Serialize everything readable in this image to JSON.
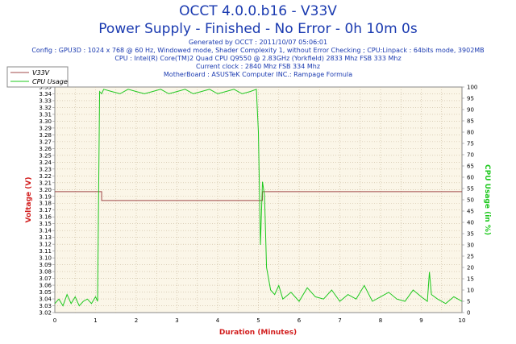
{
  "chart_data": {
    "type": "line",
    "title": "OCCT 4.0.0.b16 - V33V",
    "subtitle": "Power Supply - Finished - No Error - 0h 10m 0s",
    "info": [
      "Generated by OCCT : 2011/10/07 05:06:01",
      "Config : GPU3D : 1024 x 768 @ 60 Hz, Windowed mode, Shader Complexity 1, without Error Checking ; CPU:Linpack : 64bits mode, 3902MB",
      "CPU : Intel(R) Core(TM)2 Quad CPU Q9550 @ 2.83GHz (Yorkfield) 2833 Mhz FSB 333 Mhz",
      "Current clock : 2840 Mhz FSB 334 Mhz",
      "MotherBoard : ASUSTeK Computer INC.: Rampage Formula"
    ],
    "xlabel": "Duration (Minutes)",
    "ylabel": "Voltage (V)",
    "y2label": "CPU Usage (in %)",
    "xlim": [
      0,
      10
    ],
    "ylim": [
      3.02,
      3.35
    ],
    "y2lim": [
      0,
      100
    ],
    "x_ticks": [
      0,
      1,
      2,
      3,
      4,
      5,
      6,
      7,
      8,
      9,
      10
    ],
    "y_ticks": [
      "3.02",
      "3.03",
      "3.04",
      "3.05",
      "3.06",
      "3.07",
      "3.08",
      "3.09",
      "3.10",
      "3.11",
      "3.12",
      "3.13",
      "3.14",
      "3.15",
      "3.16",
      "3.17",
      "3.18",
      "3.19",
      "3.20",
      "3.21",
      "3.22",
      "3.23",
      "3.24",
      "3.25",
      "3.26",
      "3.27",
      "3.28",
      "3.29",
      "3.30",
      "3.31",
      "3.32",
      "3.33",
      "3.34",
      "3.35"
    ],
    "y2_ticks": [
      0,
      5,
      10,
      15,
      20,
      25,
      30,
      35,
      40,
      45,
      50,
      55,
      60,
      65,
      70,
      75,
      80,
      85,
      90,
      95,
      100
    ],
    "grid": true,
    "legend_position": "top-left",
    "series": [
      {
        "name": "V33V",
        "axis": "left",
        "color": "#a04848",
        "x": [
          0,
          1.1,
          1.15,
          5.0,
          5.1,
          10
        ],
        "y": [
          3.197,
          3.197,
          3.184,
          3.184,
          3.197,
          3.197
        ]
      },
      {
        "name": "CPU Usage",
        "axis": "right",
        "color": "#1ec81e",
        "x": [
          0,
          0.1,
          0.2,
          0.3,
          0.4,
          0.5,
          0.6,
          0.7,
          0.8,
          0.9,
          1.0,
          1.05,
          1.1,
          1.15,
          1.2,
          1.4,
          1.6,
          1.8,
          2.0,
          2.2,
          2.4,
          2.6,
          2.8,
          3.0,
          3.2,
          3.4,
          3.6,
          3.8,
          4.0,
          4.2,
          4.4,
          4.6,
          4.8,
          4.95,
          5.0,
          5.05,
          5.1,
          5.15,
          5.2,
          5.3,
          5.4,
          5.5,
          5.6,
          5.8,
          6.0,
          6.2,
          6.4,
          6.6,
          6.8,
          7.0,
          7.2,
          7.4,
          7.6,
          7.8,
          8.0,
          8.2,
          8.4,
          8.6,
          8.8,
          9.0,
          9.15,
          9.2,
          9.25,
          9.4,
          9.6,
          9.8,
          10
        ],
        "y": [
          4,
          6,
          3,
          8,
          4,
          7,
          3,
          5,
          6,
          4,
          7,
          5,
          98,
          97,
          99,
          98,
          97,
          99,
          98,
          97,
          98,
          99,
          97,
          98,
          99,
          97,
          98,
          99,
          97,
          98,
          99,
          97,
          98,
          99,
          80,
          30,
          58,
          52,
          20,
          10,
          8,
          12,
          6,
          9,
          5,
          11,
          7,
          6,
          10,
          5,
          8,
          6,
          12,
          5,
          7,
          9,
          6,
          5,
          10,
          7,
          5,
          18,
          8,
          6,
          4,
          7,
          5
        ]
      }
    ]
  }
}
